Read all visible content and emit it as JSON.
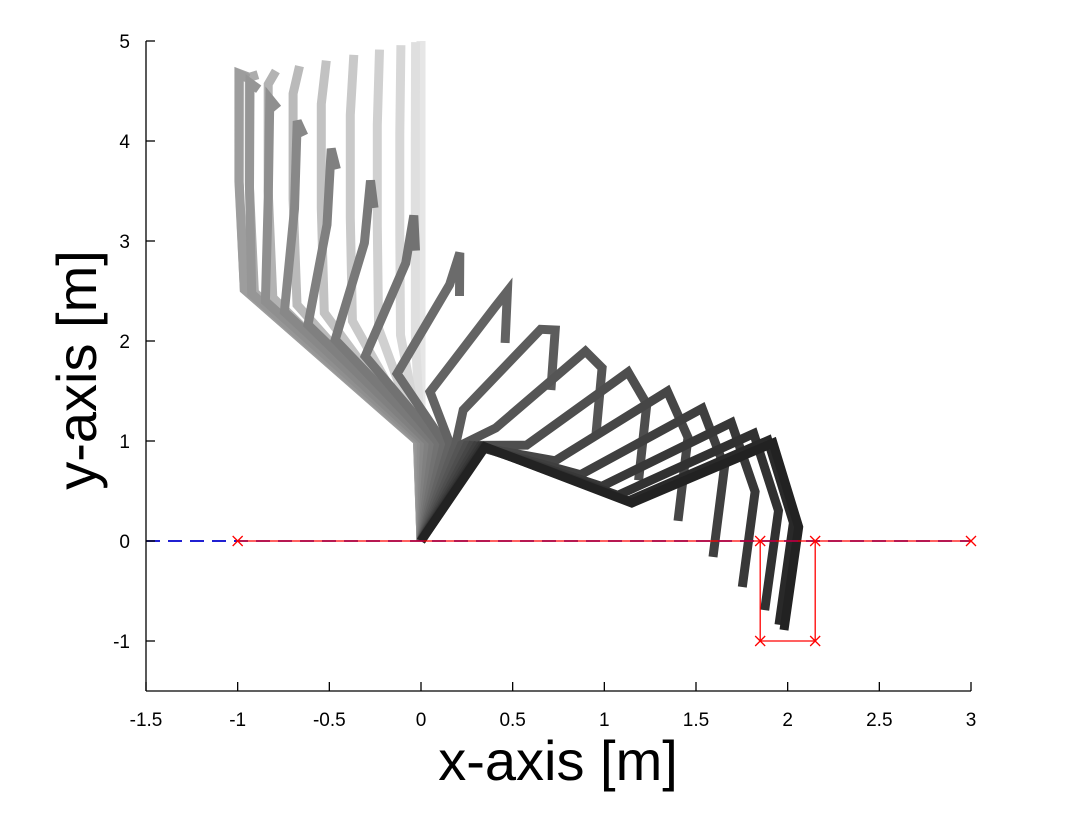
{
  "chart_data": {
    "type": "line",
    "title": "",
    "xlabel": "x-axis [m]",
    "ylabel": "y-axis [m]",
    "xlim": [
      -1.5,
      3
    ],
    "ylim": [
      -1.5,
      5
    ],
    "xticks": [
      "-1.5",
      "-1",
      "-0.5",
      "0",
      "0.5",
      "1",
      "1.5",
      "2",
      "2.5",
      "3"
    ],
    "yticks": [
      "-1",
      "0",
      "1",
      "2",
      "3",
      "4",
      "5"
    ],
    "grid": false,
    "legend": "none",
    "colors": {
      "ground_line": "#0000cc",
      "constraint": "#ff0000",
      "link_darkest": "#222222",
      "link_lightest": "#e6e6e6"
    },
    "ground_line": {
      "x": [
        -1.5,
        3
      ],
      "y": [
        0,
        0
      ],
      "style": "dashed"
    },
    "constraint_line": {
      "x": [
        -1,
        3
      ],
      "y": [
        0,
        0
      ],
      "markers": [
        [
          -1,
          0
        ],
        [
          1.85,
          0
        ],
        [
          2.15,
          0
        ],
        [
          3,
          0
        ]
      ]
    },
    "constraint_box": {
      "x": [
        1.85,
        1.85,
        2.15,
        2.15
      ],
      "y": [
        0,
        -1,
        -1,
        0
      ],
      "markers": [
        [
          1.85,
          -1
        ],
        [
          2.15,
          -1
        ]
      ]
    },
    "arm_poses": {
      "base": [
        0,
        0
      ],
      "frames": 28,
      "start_joints": [
        [
          0,
          1
        ],
        [
          0,
          2
        ],
        [
          0,
          3
        ],
        [
          0,
          4
        ],
        [
          0,
          5
        ]
      ],
      "end_joints": [
        [
          0.35,
          0.94
        ],
        [
          1.15,
          0.38
        ],
        [
          1.92,
          0.98
        ],
        [
          2.06,
          0.14
        ],
        [
          1.98,
          -0.89
        ]
      ],
      "mid_joints": [
        [
          -0.02,
          1.0
        ],
        [
          -0.97,
          2.52
        ],
        [
          -1.0,
          3.6
        ],
        [
          -1.0,
          4.68
        ],
        [
          -0.95,
          4.64
        ]
      ]
    }
  }
}
